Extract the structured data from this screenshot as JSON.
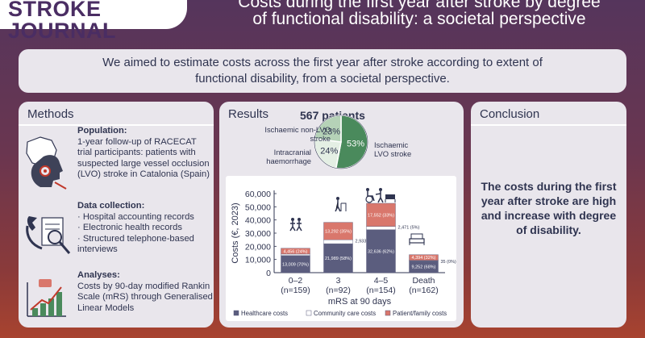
{
  "header": {
    "journal": "STROKE JOURNAL",
    "title_line1": "Costs during the first year after stroke by degree",
    "title_line2": "of functional disability: a societal perspective"
  },
  "aim": "We aimed to estimate costs across the first year after stroke according to extent of functional disability, from a societal perspective.",
  "methods": {
    "title": "Methods",
    "population_head": "Population:",
    "population_text": "1-year follow-up of RACECAT trial participants: patients with suspected large vessel occlusion (LVO) stroke in Catalonia (Spain)",
    "data_head": "Data collection:",
    "data_items": [
      "· Hospital accounting records",
      "· Electronic health records",
      "· Structured telephone-based interviews"
    ],
    "analyses_head": "Analyses:",
    "analyses_text": "Costs by 90-day modified Rankin Scale (mRS) through Generalised Linear Models"
  },
  "results": {
    "title": "Results",
    "patients": "567 patients",
    "pie": [
      {
        "label": "Ischaemic LVO stroke",
        "pct": 53,
        "text": "53%",
        "color": "#4a8a5c"
      },
      {
        "label": "Intracranial haemorrhage",
        "pct": 24,
        "text": "24%",
        "color": "#e4efe4"
      },
      {
        "label": "Ischaemic non-LVO stroke",
        "pct": 23,
        "text": "23%",
        "color": "#b5d2b7"
      }
    ]
  },
  "conclusion": {
    "title": "Conclusion",
    "text": "The costs during the first year after stroke are high and increase with degree of disability."
  },
  "chart_data": {
    "type": "bar",
    "stacked": true,
    "ylabel": "Costs (€, 2023)",
    "xlabel": "mRS at 90 days",
    "ylim": [
      0,
      60000
    ],
    "yticks": [
      "0",
      "10,000",
      "20,000",
      "30,000",
      "40,000",
      "50,000",
      "60,000"
    ],
    "ytick_values": [
      0,
      10000,
      20000,
      30000,
      40000,
      50000,
      60000
    ],
    "categories": [
      "0–2",
      "3",
      "4–5",
      "Death"
    ],
    "category_n": [
      "(n=159)",
      "(n=92)",
      "(n=154)",
      "(n=162)"
    ],
    "series": [
      {
        "name": "Healthcare costs",
        "color": "#5b5d7e",
        "values": [
          13009,
          21989,
          32636,
          9252
        ],
        "labels": [
          "13,009 (70%)",
          "21,989 (58%)",
          "32,636 (62%)",
          "9,252 (68%)"
        ]
      },
      {
        "name": "Community care costs",
        "color": "#ffffff",
        "values": [
          1100,
          2933,
          2471,
          35
        ],
        "labels": [
          "",
          "2,933 (8%)",
          "2,471 (5%)",
          "35 (0%)"
        ]
      },
      {
        "name": "Patient/family costs",
        "color": "#d9776c",
        "values": [
          4456,
          13292,
          17552,
          4394
        ],
        "labels": [
          "4,456 (24%)",
          "13,292 (35%)",
          "17,552 (33%)",
          "4,394 (32%)"
        ]
      }
    ],
    "legend_position": "bottom"
  },
  "colors": {
    "background_top": "#55355c",
    "background_bottom": "#a8432f",
    "panel": "#e9e6ec",
    "text": "#2f3450",
    "pie_dark": "#4a8a5c"
  }
}
